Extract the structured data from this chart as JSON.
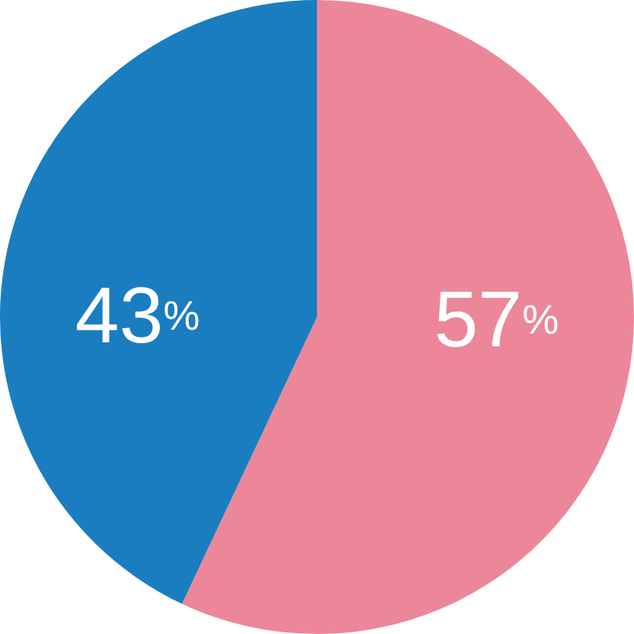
{
  "chart_data": {
    "type": "pie",
    "categories": [
      null,
      null
    ],
    "values": [
      57,
      43
    ],
    "colors": [
      "#eb8799",
      "#1a7dc0"
    ],
    "value_labels": [
      "57%",
      "43%"
    ]
  }
}
